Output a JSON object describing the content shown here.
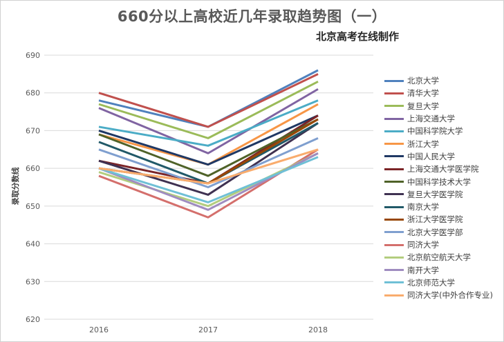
{
  "chart_data": {
    "type": "line",
    "title": "660分以上高校近几年录取趋势图（一）",
    "subtitle": "北京高考在线制作",
    "ylabel": "录取分数线",
    "xlabel": "",
    "categories": [
      "2016",
      "2017",
      "2018"
    ],
    "ylim": [
      620,
      690
    ],
    "yticks": [
      620,
      630,
      640,
      650,
      660,
      670,
      680,
      690
    ],
    "grid": "horizontal",
    "legend_position": "right",
    "series": [
      {
        "name": "北京大学",
        "color": "#4f81bd",
        "values": [
          678,
          671,
          686
        ]
      },
      {
        "name": "清华大学",
        "color": "#c0504d",
        "values": [
          680,
          671,
          685
        ]
      },
      {
        "name": "复旦大学",
        "color": "#9bbb59",
        "values": [
          677,
          668,
          683
        ]
      },
      {
        "name": "上海交通大学",
        "color": "#8064a2",
        "values": [
          676,
          664,
          681
        ]
      },
      {
        "name": "中国科学院大学",
        "color": "#4bacc6",
        "values": [
          671,
          666,
          678
        ]
      },
      {
        "name": "浙江大学",
        "color": "#f79646",
        "values": [
          669,
          661,
          677
        ]
      },
      {
        "name": "中国人民大学",
        "color": "#1f3864",
        "values": [
          670,
          661,
          674
        ]
      },
      {
        "name": "上海交通大学医学院",
        "color": "#7b2427",
        "values": [
          662,
          656,
          674
        ]
      },
      {
        "name": "中国科学技术大学",
        "color": "#4f6228",
        "values": [
          669,
          658,
          673
        ]
      },
      {
        "name": "复旦大学医学院",
        "color": "#3f3151",
        "values": [
          662,
          653,
          672
        ]
      },
      {
        "name": "南京大学",
        "color": "#215968",
        "values": [
          667,
          656,
          672
        ]
      },
      {
        "name": "浙江大学医学院",
        "color": "#974706",
        "values": [
          660,
          656,
          673
        ]
      },
      {
        "name": "北京大学医学部",
        "color": "#7f9fcf",
        "values": [
          665,
          655,
          668
        ]
      },
      {
        "name": "同济大学",
        "color": "#d46f6c",
        "values": [
          658,
          647,
          665
        ]
      },
      {
        "name": "北京航空航天大学",
        "color": "#b3cd7e",
        "values": [
          659,
          650,
          664
        ]
      },
      {
        "name": "南开大学",
        "color": "#9f8cc0",
        "values": [
          660,
          649,
          664
        ]
      },
      {
        "name": "北京师范大学",
        "color": "#6fc0d6",
        "values": [
          660,
          651,
          663
        ]
      },
      {
        "name": "同济大学(中外合作专业)",
        "color": "#f9ac6d",
        "values": [
          660,
          656,
          665
        ]
      }
    ]
  }
}
